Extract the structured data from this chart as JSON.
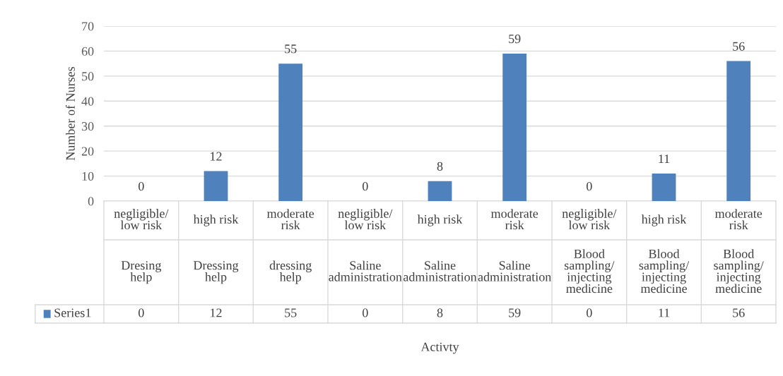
{
  "chart_data": {
    "type": "bar",
    "categories": [
      "negligible/low risk\nDresing help",
      "high risk\nDressing help",
      "moderate risk\ndressing help",
      "negligible/low risk\nSaline administration",
      "high risk\nSaline administration",
      "moderate risk\nSaline administration",
      "negligible/low risk\nBlood sampling/injecting medicine",
      "high risk\nBlood sampling/injecting medicine",
      "moderate risk\nBlood sampling/injecting medicine"
    ],
    "series": [
      {
        "name": "Series1",
        "color": "#4f81bd",
        "values": [
          0,
          12,
          55,
          0,
          8,
          59,
          0,
          11,
          56
        ],
        "value_labels": [
          "0",
          "12",
          "55",
          "0",
          "8",
          "59",
          "0",
          "11",
          "56"
        ]
      }
    ],
    "ylabel": "Number of Nurses",
    "annotations": [
      "Activty"
    ],
    "ylim": [
      0,
      70
    ],
    "yticks": [
      0,
      10,
      20,
      30,
      40,
      50,
      60,
      70
    ],
    "grid": "y",
    "legend": "bottom"
  }
}
